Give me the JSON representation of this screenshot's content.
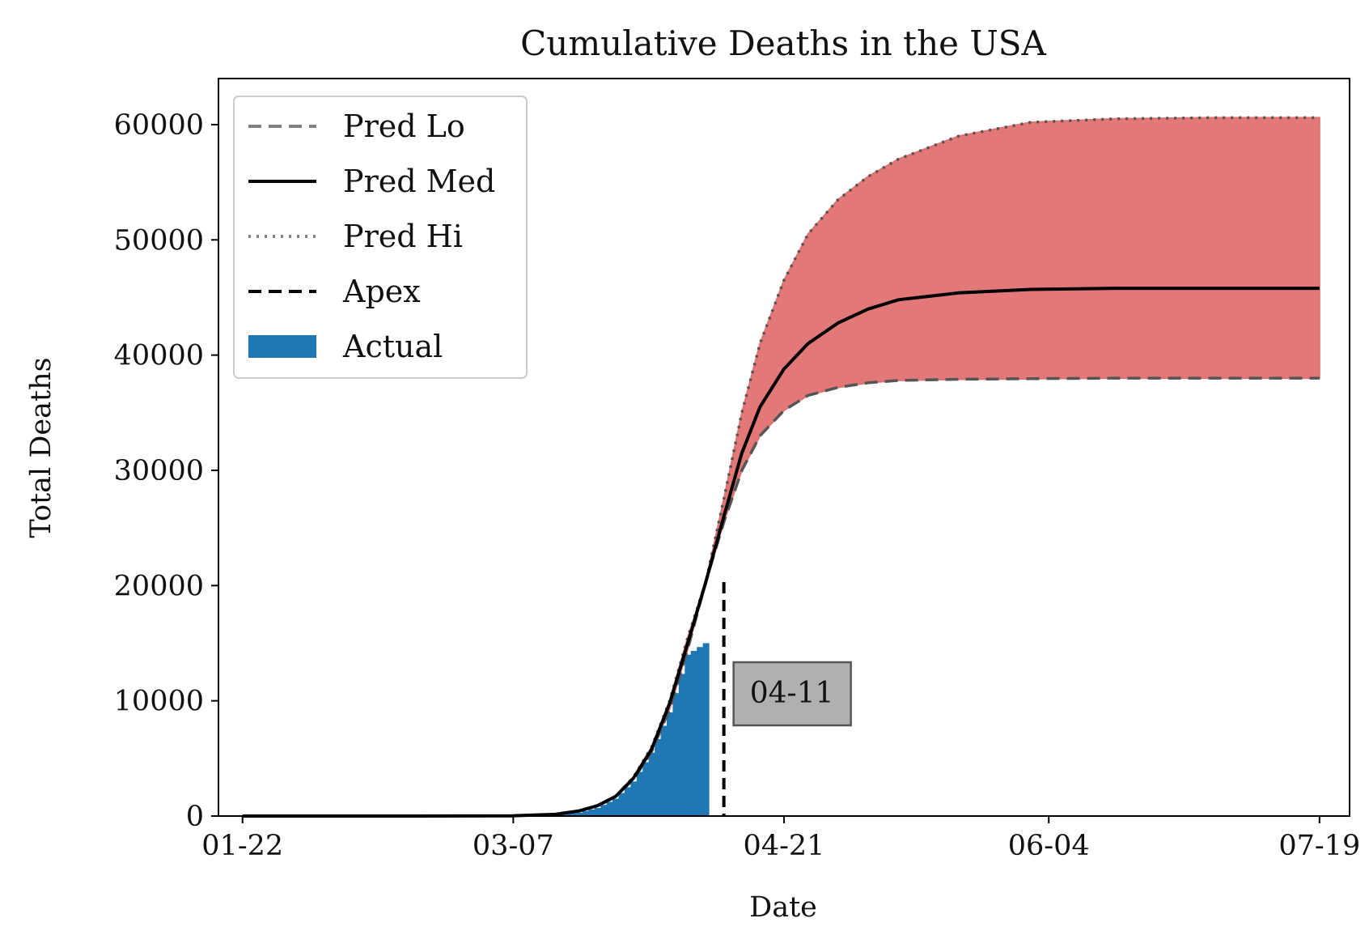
{
  "chart_data": {
    "type": "area",
    "title": "Cumulative Deaths in the USA",
    "xlabel": "Date",
    "ylabel": "Total Deaths",
    "x_ticks": [
      "01-22",
      "03-07",
      "04-21",
      "06-04",
      "07-19"
    ],
    "y_ticks": [
      "0",
      "10000",
      "20000",
      "30000",
      "40000",
      "50000",
      "60000"
    ],
    "xlim": [
      "2020-01-18",
      "2020-07-24"
    ],
    "ylim": [
      0,
      64000
    ],
    "grid": false,
    "legend_placement": "top-left",
    "x_dates": [
      "2020-01-22",
      "2020-02-15",
      "2020-03-07",
      "2020-03-14",
      "2020-03-18",
      "2020-03-21",
      "2020-03-24",
      "2020-03-27",
      "2020-03-30",
      "2020-04-02",
      "2020-04-05",
      "2020-04-08",
      "2020-04-11",
      "2020-04-14",
      "2020-04-17",
      "2020-04-21",
      "2020-04-25",
      "2020-04-30",
      "2020-05-05",
      "2020-05-10",
      "2020-05-20",
      "2020-06-01",
      "2020-06-15",
      "2020-07-01",
      "2020-07-19"
    ],
    "series": [
      {
        "name": "Pred Lo",
        "style": "dashed",
        "color": "#808080",
        "values": [
          0,
          0,
          20,
          150,
          450,
          900,
          1700,
          3200,
          5600,
          9300,
          14500,
          20300,
          25500,
          30000,
          33000,
          35200,
          36500,
          37200,
          37600,
          37800,
          37900,
          37950,
          38000,
          38000,
          38000
        ]
      },
      {
        "name": "Pred Med",
        "style": "solid",
        "color": "#000000",
        "values": [
          0,
          0,
          20,
          150,
          450,
          900,
          1700,
          3300,
          5800,
          9800,
          15000,
          20300,
          26000,
          31500,
          35500,
          38800,
          41000,
          42800,
          44000,
          44800,
          45400,
          45700,
          45800,
          45800,
          45800
        ]
      },
      {
        "name": "Pred Hi",
        "style": "dotted",
        "color": "#808080",
        "values": [
          0,
          0,
          20,
          150,
          450,
          900,
          1700,
          3400,
          6000,
          10000,
          15500,
          20300,
          27500,
          35000,
          41000,
          46500,
          50500,
          53500,
          55500,
          57000,
          59000,
          60200,
          60500,
          60600,
          60600
        ]
      }
    ],
    "band": {
      "lower": "Pred Lo",
      "upper": "Pred Hi",
      "color": "#e07170"
    },
    "actual": {
      "name": "Actual",
      "color": "#1f77b4",
      "dates": [
        "2020-01-22",
        "2020-02-15",
        "2020-03-07",
        "2020-03-14",
        "2020-03-18",
        "2020-03-21",
        "2020-03-24",
        "2020-03-27",
        "2020-03-30",
        "2020-04-02",
        "2020-04-05",
        "2020-04-08"
      ],
      "values": [
        0,
        0,
        20,
        100,
        300,
        700,
        1500,
        3000,
        5500,
        9000,
        14000,
        15000
      ]
    },
    "apex": {
      "name": "Apex",
      "date": "2020-04-11",
      "value": 20300,
      "label": "04-11",
      "style": "dashed",
      "color": "#000000"
    }
  }
}
